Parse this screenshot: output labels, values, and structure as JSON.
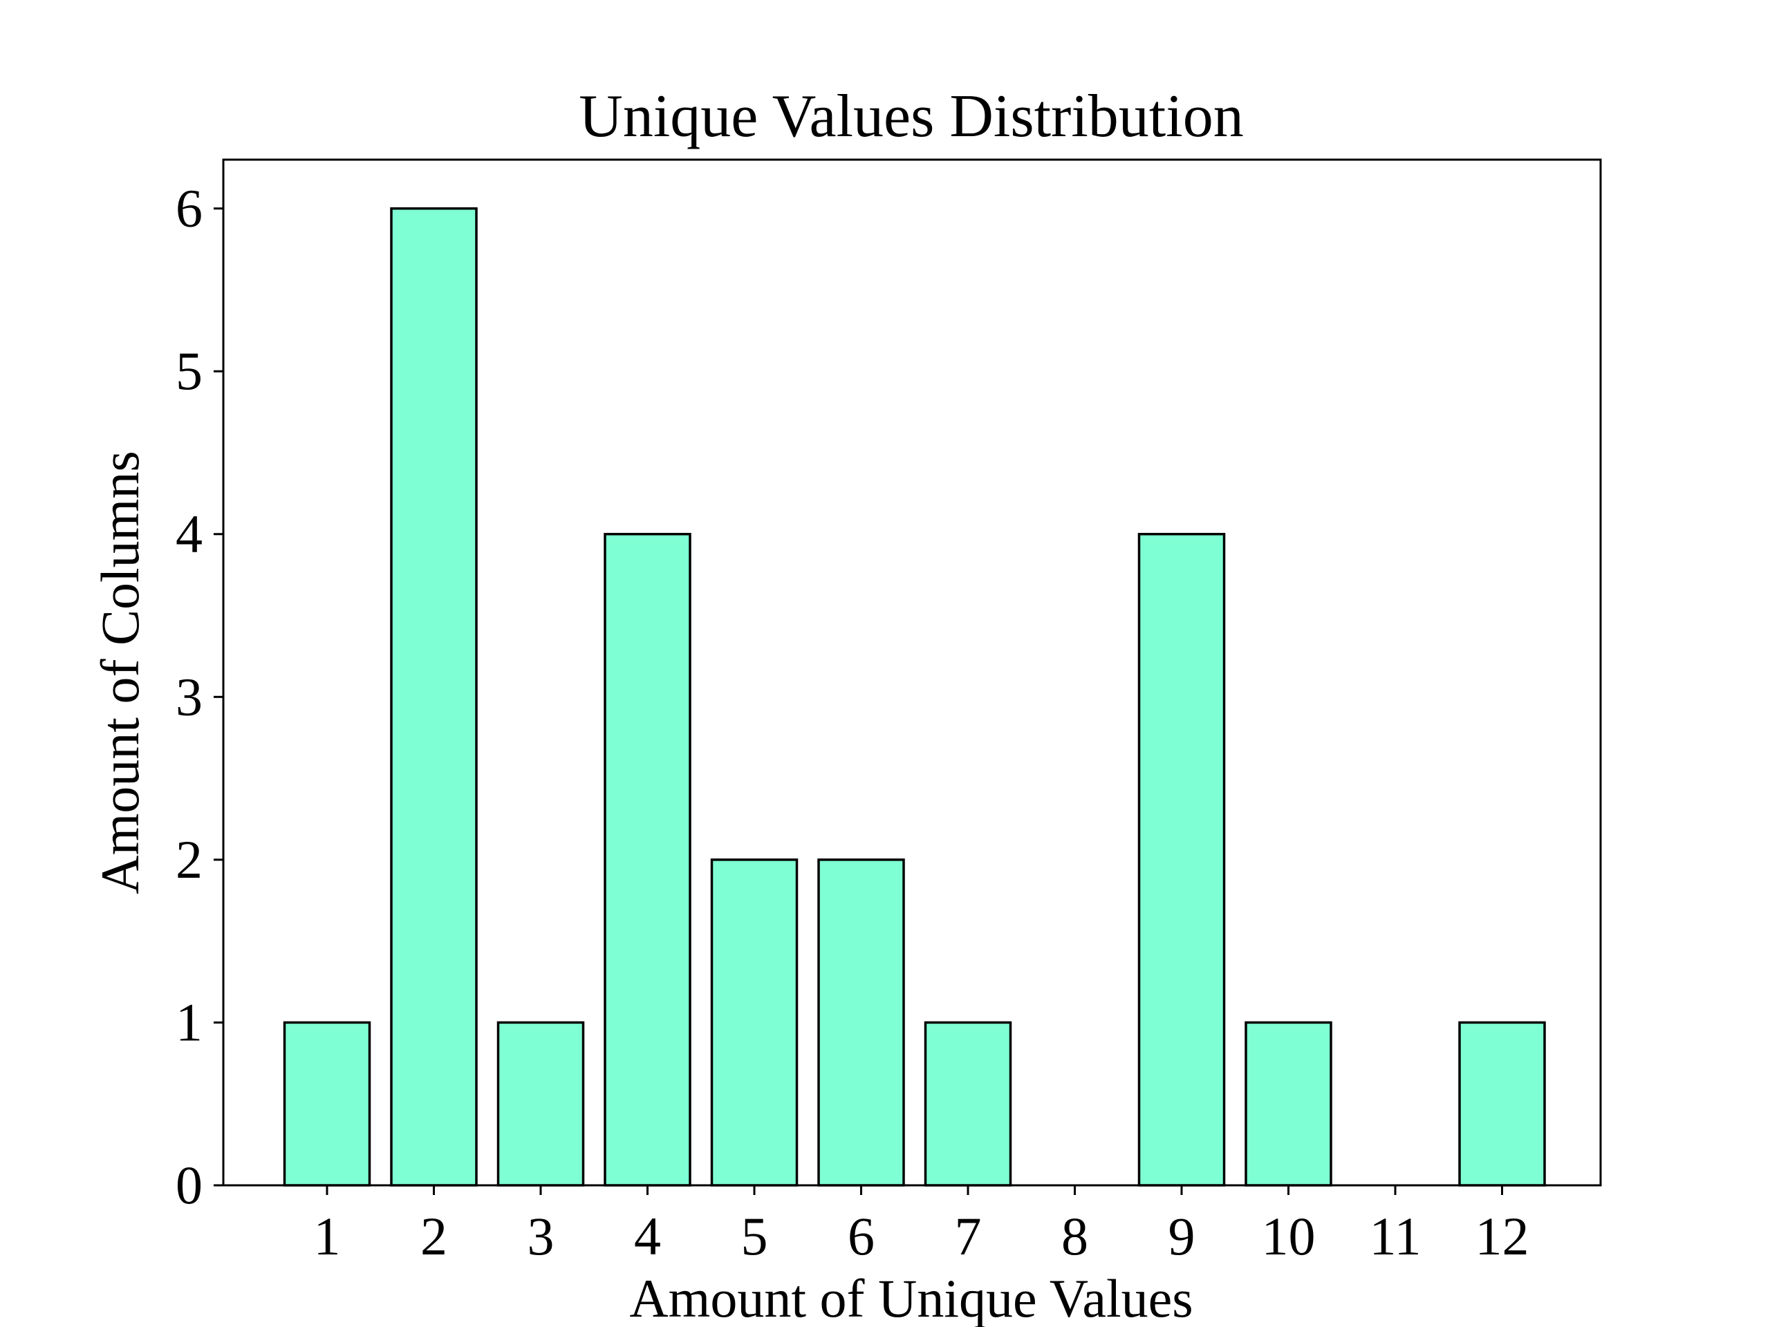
{
  "chart_data": {
    "type": "bar",
    "title": "Unique Values Distribution",
    "xlabel": "Amount of Unique Values",
    "ylabel": "Amount of Columns",
    "categories": [
      "1",
      "2",
      "3",
      "4",
      "5",
      "6",
      "7",
      "8",
      "9",
      "10",
      "11",
      "12"
    ],
    "values": [
      1,
      6,
      1,
      4,
      2,
      2,
      1,
      0,
      4,
      1,
      0,
      1
    ],
    "y_ticks": [
      "0",
      "1",
      "2",
      "3",
      "4",
      "5",
      "6"
    ],
    "ylim": [
      0,
      6.3
    ],
    "grid": false,
    "bar_color": "#7fffd4",
    "edge_color": "#000000"
  }
}
